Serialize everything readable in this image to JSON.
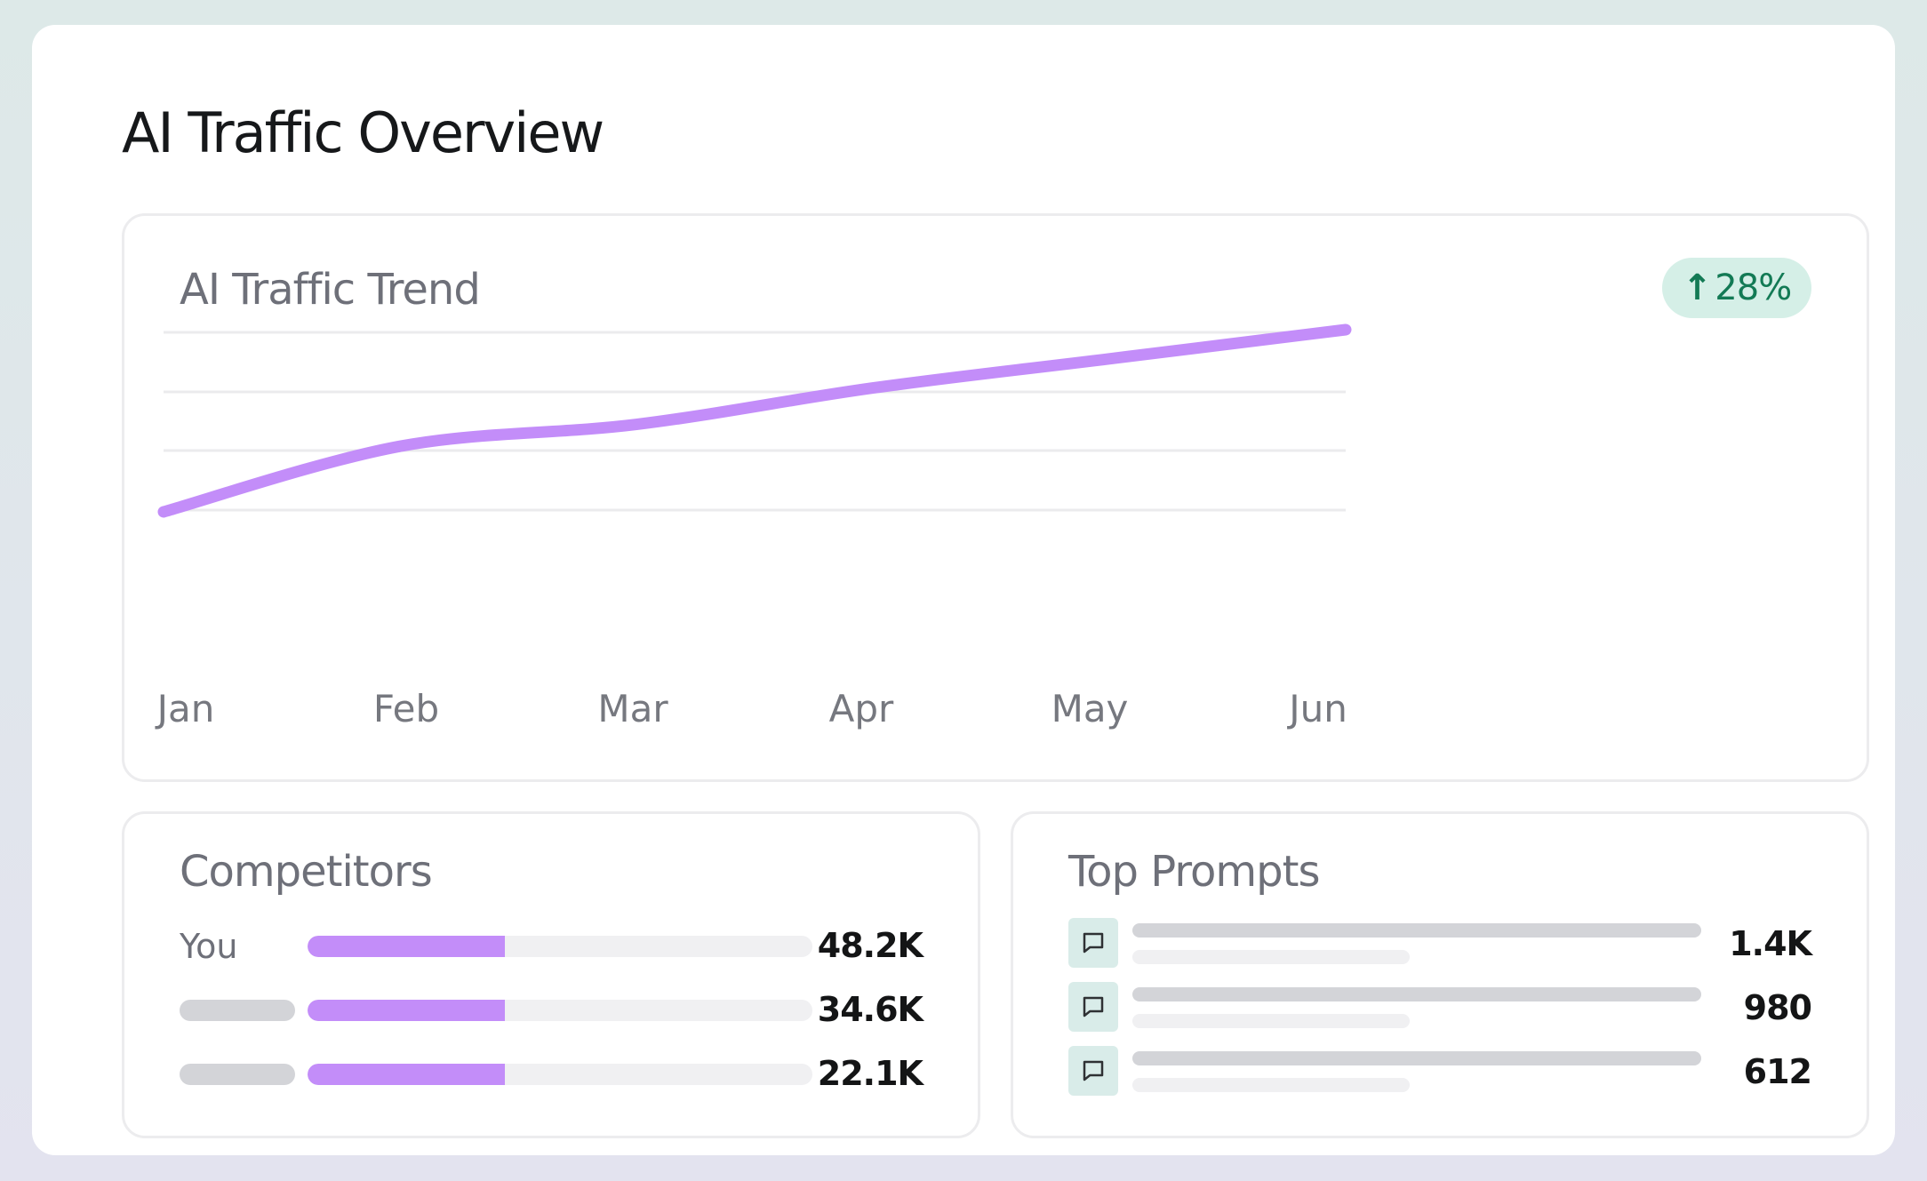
{
  "header": {
    "title": "AI Traffic Overview"
  },
  "trend": {
    "title": "AI Traffic Trend",
    "badge": {
      "arrow": "↑",
      "value": "28%",
      "color": "#137a55",
      "background": "#d5efe7"
    }
  },
  "chart_data": {
    "type": "line",
    "title": "AI Traffic Trend",
    "x": [
      "Jan",
      "Feb",
      "Mar",
      "Apr",
      "May",
      "Jun"
    ],
    "series": [
      {
        "values": [
          0,
          0.36,
          0.48,
          0.68,
          0.84,
          1.0
        ],
        "color": "#c38df9"
      }
    ],
    "ylim": [
      0,
      1
    ],
    "grid": true,
    "xlabel": "",
    "ylabel": ""
  },
  "competitors": {
    "title": "Competitors",
    "rows": [
      {
        "label": "You",
        "value": "48.2K",
        "share": 0.39
      },
      {
        "label": "",
        "value": "34.6K",
        "share": 0.39
      },
      {
        "label": "",
        "value": "22.1K",
        "share": 0.39
      }
    ],
    "bar_color": "#c38df9"
  },
  "top_prompts": {
    "title": "Top Prompts",
    "icon": "message-square-icon",
    "rows": [
      {
        "value": "1.4K"
      },
      {
        "value": "980"
      },
      {
        "value": "612"
      }
    ]
  }
}
